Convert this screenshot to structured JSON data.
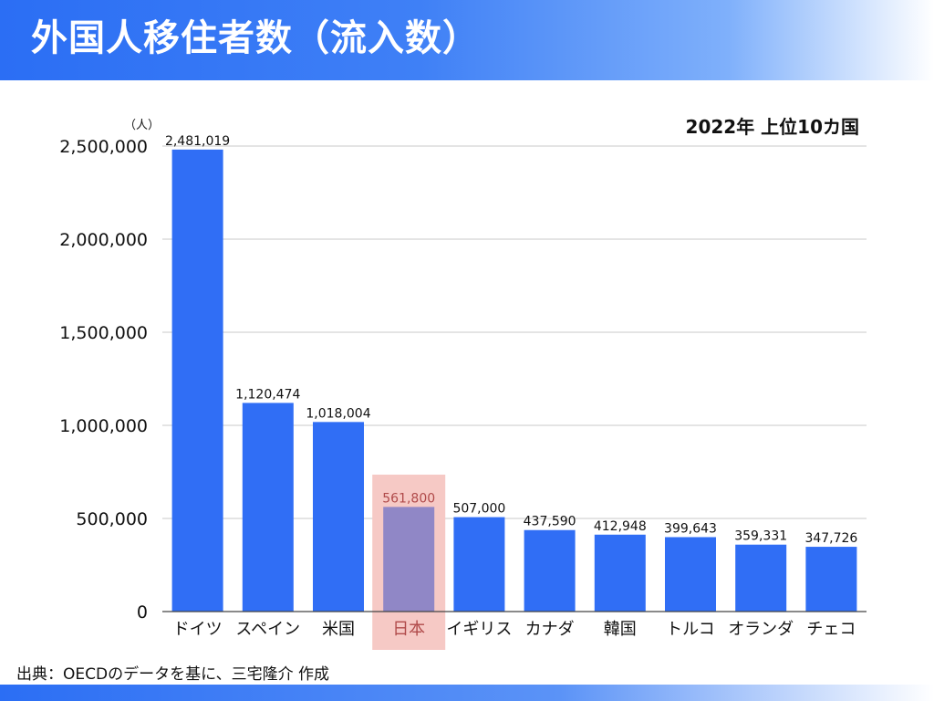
{
  "slide": {
    "title": "外国人移住者数（流入数）",
    "source_note": "出典：OECDのデータを基に、三宅隆介 作成"
  },
  "colors": {
    "title_bar": "#2b6ef4",
    "bar": "#306ef5",
    "highlight_bar": "#9087c6",
    "highlight_box": "#f6c9c5",
    "highlight_text": "#b04a4a",
    "grid": "#c8c8c8"
  },
  "chart_data": {
    "type": "bar",
    "title": "2022年 上位10カ国",
    "unit_label": "（人）",
    "categories": [
      "ドイツ",
      "スペイン",
      "米国",
      "日本",
      "イギリス",
      "カナダ",
      "韓国",
      "トルコ",
      "オランダ",
      "チェコ"
    ],
    "values": [
      2481019,
      1120474,
      1018004,
      561800,
      507000,
      437590,
      412948,
      399643,
      359331,
      347726
    ],
    "value_labels": [
      "2,481,019",
      "1,120,474",
      "1,018,004",
      "561,800",
      "507,000",
      "437,590",
      "412,948",
      "399,643",
      "359,331",
      "347,726"
    ],
    "highlight_category": "日本",
    "yticks": [
      0,
      500000,
      1000000,
      1500000,
      2000000,
      2500000
    ],
    "ytick_labels": [
      "0",
      "500,000",
      "1,000,000",
      "1,500,000",
      "2,000,000",
      "2,500,000"
    ],
    "ylim": [
      0,
      2500000
    ],
    "grid": true,
    "legend": "none"
  }
}
